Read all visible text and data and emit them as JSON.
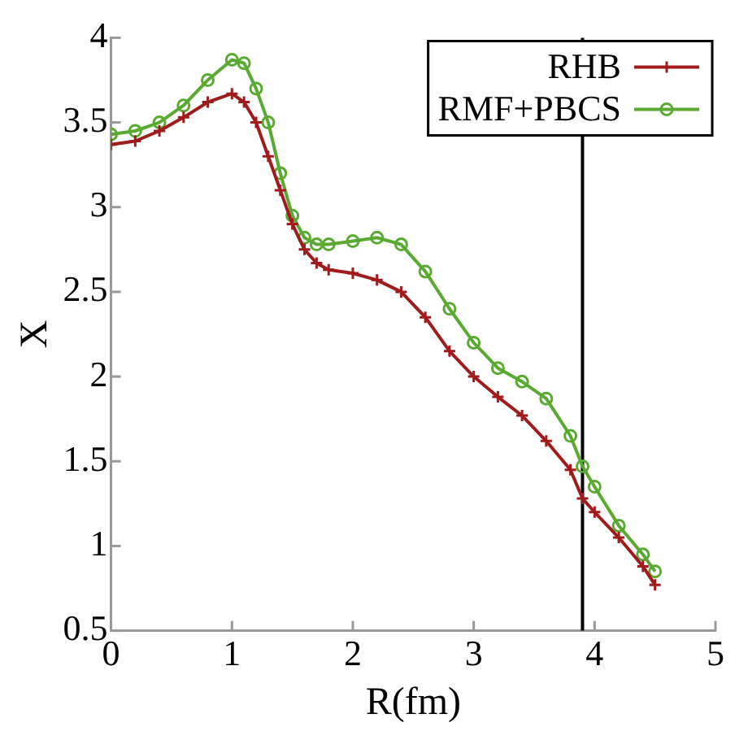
{
  "chart_data": {
    "type": "line",
    "xlabel": "R(fm)",
    "ylabel": "X",
    "xlim": [
      0,
      5
    ],
    "xticks": [
      0,
      1,
      2,
      3,
      4,
      5
    ],
    "ylim": [
      0.5,
      4
    ],
    "yticks": [
      0.5,
      1,
      1.5,
      2,
      2.5,
      3,
      3.5,
      4
    ],
    "grid": false,
    "legend": "top right",
    "line_style": "solid",
    "x": [
      0,
      0.2,
      0.4,
      0.6,
      0.8,
      1.0,
      1.1,
      1.2,
      1.3,
      1.4,
      1.5,
      1.6,
      1.7,
      1.8,
      2.0,
      2.2,
      2.4,
      2.6,
      2.8,
      3.0,
      3.2,
      3.4,
      3.6,
      3.8,
      3.9,
      4.0,
      4.2,
      4.4,
      4.5
    ],
    "series": [
      {
        "name": "RHB",
        "color": "#a01c1c",
        "marker": "cross",
        "values": [
          3.37,
          3.39,
          3.45,
          3.53,
          3.62,
          3.67,
          3.62,
          3.5,
          3.3,
          3.1,
          2.9,
          2.75,
          2.67,
          2.63,
          2.61,
          2.57,
          2.5,
          2.35,
          2.15,
          2.0,
          1.88,
          1.77,
          1.62,
          1.45,
          1.28,
          1.2,
          1.05,
          0.88,
          0.77
        ]
      },
      {
        "name": "RMF+PBCS",
        "color": "#5aaa32",
        "marker": "circle",
        "values": [
          3.43,
          3.45,
          3.5,
          3.6,
          3.75,
          3.87,
          3.85,
          3.7,
          3.5,
          3.2,
          2.95,
          2.82,
          2.78,
          2.78,
          2.8,
          2.82,
          2.78,
          2.62,
          2.4,
          2.2,
          2.05,
          1.97,
          1.87,
          1.65,
          1.47,
          1.35,
          1.12,
          0.95,
          0.85
        ]
      }
    ],
    "ref_lines": [
      {
        "axis": "x",
        "value": 3.9,
        "color": "#000000"
      }
    ]
  }
}
